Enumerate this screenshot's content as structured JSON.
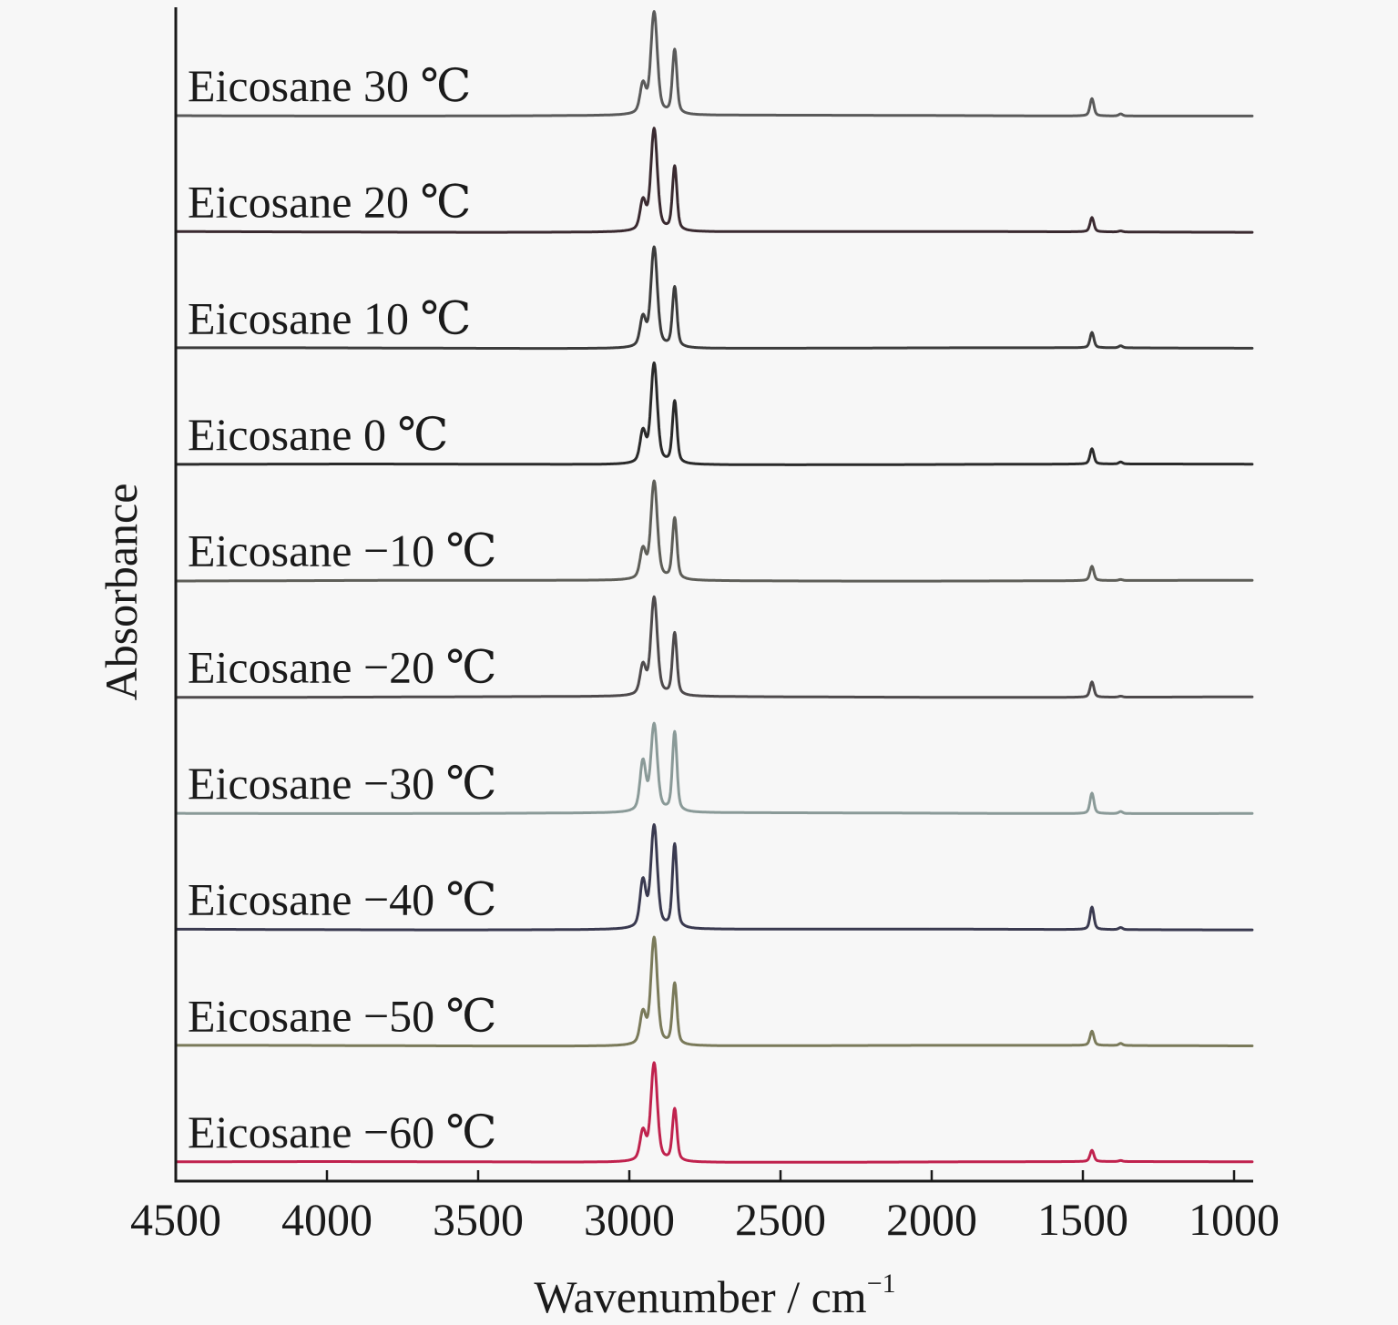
{
  "chart_data": {
    "type": "line",
    "title": "",
    "xlabel": "Wavenumber / cm",
    "xlabel_superscript": "−1",
    "ylabel": "Absorbance",
    "xlim": [
      4500,
      940
    ],
    "x_reversed": true,
    "xticks": [
      4500,
      4000,
      3500,
      3000,
      2500,
      2000,
      1500,
      1000
    ],
    "xtick_labels": [
      "4500",
      "4000",
      "3500",
      "3000",
      "2500",
      "2000",
      "1500",
      "1000"
    ],
    "yticks": [],
    "grid": false,
    "legend": "inline-labels",
    "peaks_cm-1": [
      2955,
      2918,
      2850,
      1470,
      1375
    ],
    "series": [
      {
        "name": "Eicosane 30 ℃",
        "color": "#5a5a5a",
        "offset": 9,
        "peaks": {
          "2955": 0.28,
          "2918": 1.0,
          "2850": 0.63,
          "1470": 0.17,
          "1375": 0.02
        }
      },
      {
        "name": "Eicosane 20 ℃",
        "color": "#3a2a30",
        "offset": 8,
        "peaks": {
          "2955": 0.28,
          "2918": 1.0,
          "2850": 0.63,
          "1470": 0.14,
          "1375": 0.01
        }
      },
      {
        "name": "Eicosane 10 ℃",
        "color": "#3c3c3c",
        "offset": 7,
        "peaks": {
          "2955": 0.28,
          "2918": 0.98,
          "2850": 0.59,
          "1470": 0.15,
          "1375": 0.02
        }
      },
      {
        "name": "Eicosane 0 ℃",
        "color": "#2a2a2a",
        "offset": 6,
        "peaks": {
          "2955": 0.3,
          "2918": 0.98,
          "2850": 0.61,
          "1470": 0.15,
          "1375": 0.02
        }
      },
      {
        "name": "Eicosane −10 ℃",
        "color": "#5e5e58",
        "offset": 5,
        "peaks": {
          "2955": 0.28,
          "2918": 0.96,
          "2850": 0.6,
          "1470": 0.14,
          "1375": 0.01
        }
      },
      {
        "name": "Eicosane −20 ℃",
        "color": "#4e4a4c",
        "offset": 4,
        "peaks": {
          "2955": 0.28,
          "2918": 0.96,
          "2850": 0.61,
          "1470": 0.15,
          "1375": 0.01
        }
      },
      {
        "name": "Eicosane −30 ℃",
        "color": "#8a9a98",
        "offset": 3,
        "peaks": {
          "2955": 0.48,
          "2918": 0.85,
          "2850": 0.78,
          "1470": 0.2,
          "1375": 0.02
        }
      },
      {
        "name": "Eicosane −40 ℃",
        "color": "#3a3a50",
        "offset": 2,
        "peaks": {
          "2955": 0.45,
          "2918": 1.0,
          "2850": 0.82,
          "1470": 0.22,
          "1375": 0.02
        }
      },
      {
        "name": "Eicosane −50 ℃",
        "color": "#7a7a5a",
        "offset": 1,
        "peaks": {
          "2955": 0.3,
          "2918": 1.05,
          "2850": 0.6,
          "1470": 0.14,
          "1375": 0.02
        }
      },
      {
        "name": "Eicosane −60 ℃",
        "color": "#c0224e",
        "offset": 0,
        "peaks": {
          "2955": 0.28,
          "2918": 0.96,
          "2850": 0.51,
          "1470": 0.11,
          "1375": 0.01
        }
      }
    ]
  }
}
